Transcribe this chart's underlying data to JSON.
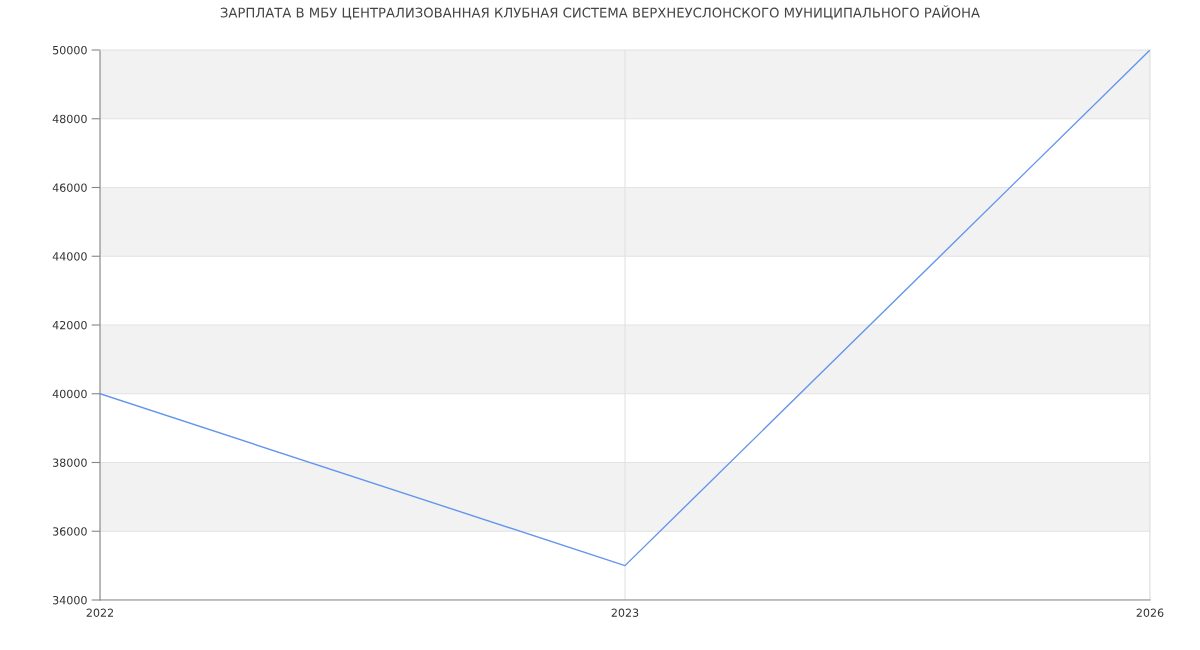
{
  "chart_data": {
    "type": "line",
    "title": "ЗАРПЛАТА В МБУ ЦЕНТРАЛИЗОВАННАЯ КЛУБНАЯ СИСТЕМА ВЕРХНЕУСЛОНСКОГО МУНИЦИПАЛЬНОГО РАЙОНА",
    "categories": [
      "2022",
      "2023",
      "2026"
    ],
    "series": [
      {
        "color": "#6495ed",
        "values": [
          40000,
          35000,
          50000
        ]
      }
    ],
    "ylim": [
      34000,
      50000
    ],
    "yticks": [
      34000,
      36000,
      38000,
      40000,
      42000,
      44000,
      46000,
      48000,
      50000
    ],
    "grid": true,
    "marker": "none",
    "line_style": "solid",
    "bands": [
      {
        "axis": "y",
        "from": 36000,
        "to": 38000,
        "color": "#f2f2f2"
      },
      {
        "axis": "y",
        "from": 40000,
        "to": 42000,
        "color": "#f2f2f2"
      },
      {
        "axis": "y",
        "from": 44000,
        "to": 46000,
        "color": "#f2f2f2"
      },
      {
        "axis": "y",
        "from": 48000,
        "to": 50000,
        "color": "#f2f2f2"
      }
    ]
  }
}
